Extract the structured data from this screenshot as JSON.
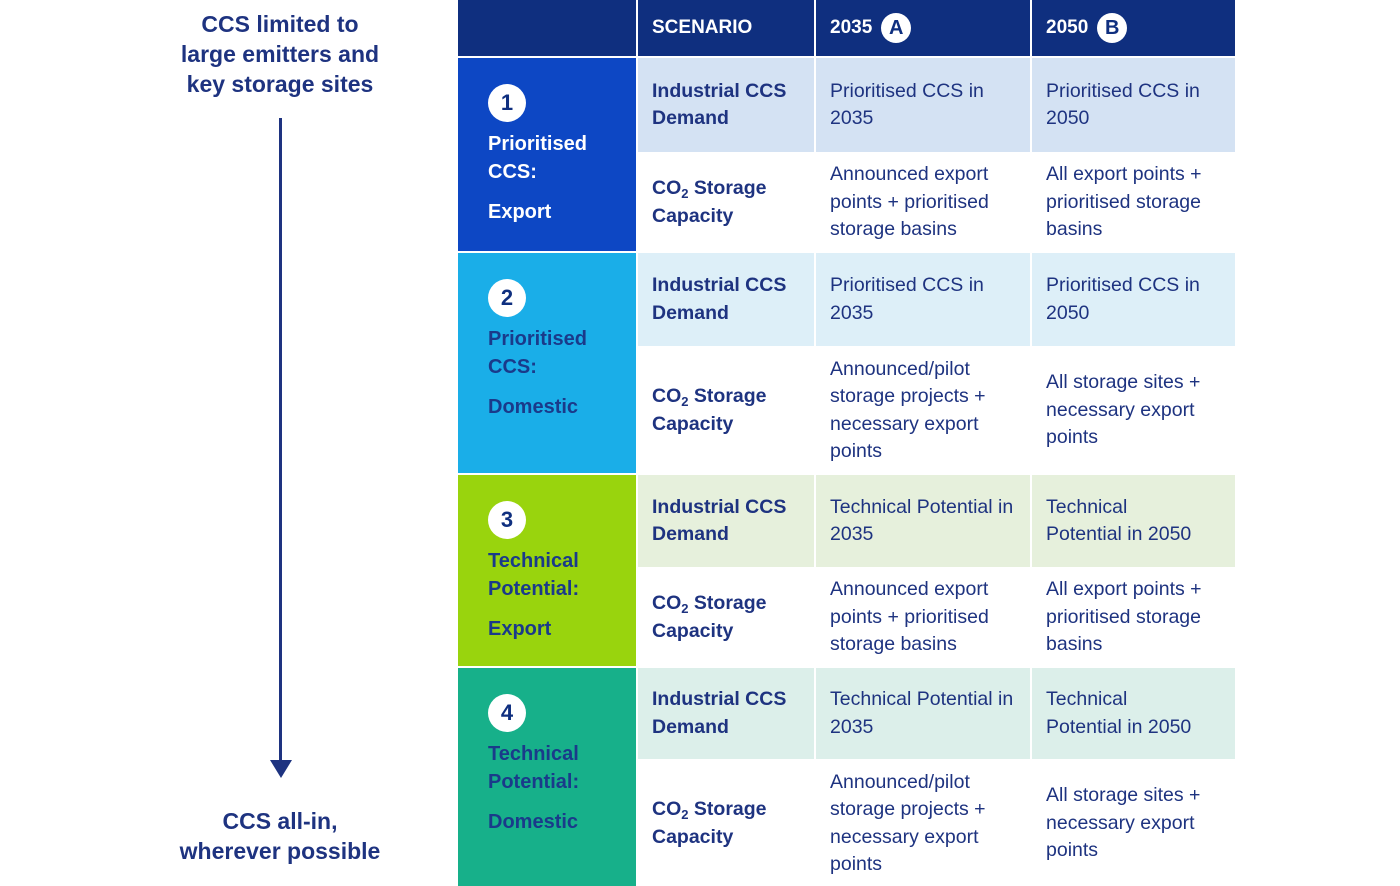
{
  "side": {
    "top": [
      "CCS limited to",
      "large emitters and",
      "key storage sites"
    ],
    "bottom": [
      "CCS all-in,",
      "wherever possible"
    ]
  },
  "header": {
    "scenario": "SCENARIO",
    "y2035": "2035",
    "y2035_badge": "A",
    "y2050": "2050",
    "y2050_badge": "B"
  },
  "row_labels": {
    "demand_line1": "Industrial CCS",
    "demand_line2": "Demand",
    "storage_co": "CO",
    "storage_sub": "2",
    "storage_rest": " Storage",
    "storage_line2": "Capacity"
  },
  "scenarios": [
    {
      "num": "1",
      "line1": "Prioritised",
      "line2": "CCS:",
      "sub": "Export",
      "demand_2035": "Prioritised CCS in 2035",
      "demand_2050": "Prioritised CCS in 2050",
      "storage_2035": "Announced export points + prioritised storage basins",
      "storage_2050": "All export points + prioritised storage basins"
    },
    {
      "num": "2",
      "line1": "Prioritised",
      "line2": "CCS:",
      "sub": "Domestic",
      "demand_2035": "Prioritised CCS in 2035",
      "demand_2050": "Prioritised CCS in 2050",
      "storage_2035": "Announced/pilot storage projects + necessary export points",
      "storage_2050": "All storage sites + necessary export points"
    },
    {
      "num": "3",
      "line1": "Technical",
      "line2": "Potential:",
      "sub": "Export",
      "demand_2035": "Technical Potential in 2035",
      "demand_2050": "Technical Potential in 2050",
      "storage_2035": "Announced export points + prioritised storage basins",
      "storage_2050": "All export points + prioritised storage basins"
    },
    {
      "num": "4",
      "line1": "Technical",
      "line2": "Potential:",
      "sub": "Domestic",
      "demand_2035": "Technical Potential in 2035",
      "demand_2050": "Technical Potential in 2050",
      "storage_2035": "Announced/pilot storage projects + necessary export points",
      "storage_2050": "All storage sites + necessary export points"
    }
  ],
  "colors": {
    "header": "#0f2f7f",
    "scenario1": "#0d47c4",
    "scenario2": "#1aaee8",
    "scenario3": "#99d40d",
    "scenario4": "#17b08a",
    "text": "#1e3380"
  }
}
